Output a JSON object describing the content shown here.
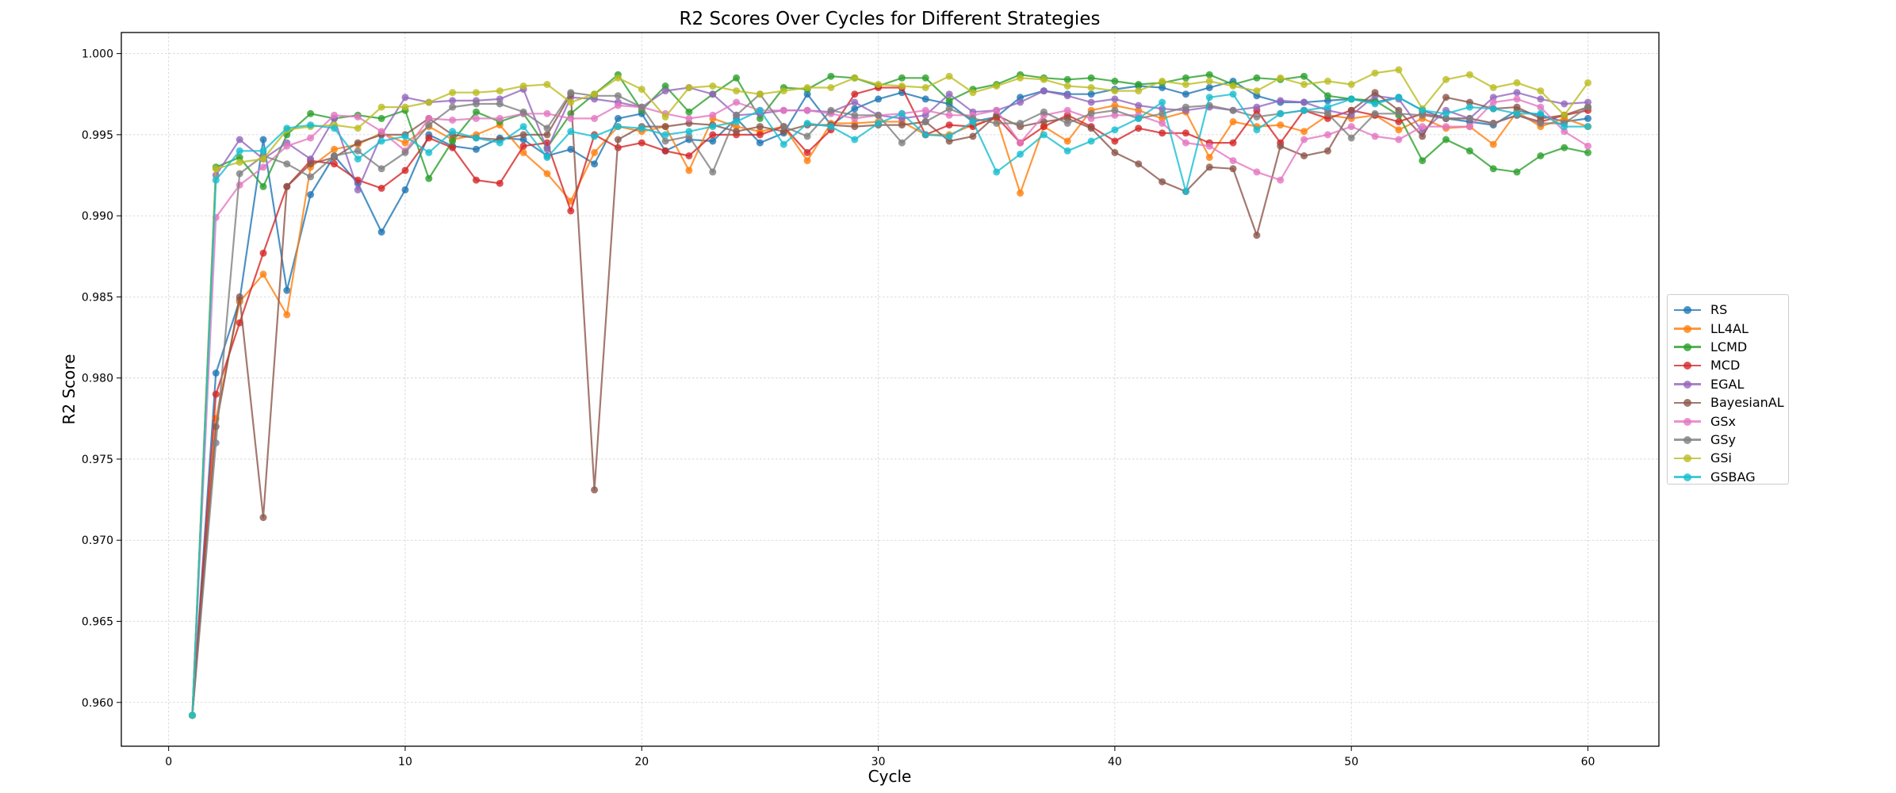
{
  "chart_data": {
    "type": "line",
    "title": "R2 Scores Over Cycles for Different Strategies",
    "xlabel": "Cycle",
    "ylabel": "R2 Score",
    "xlim": [
      -2,
      63
    ],
    "ylim": [
      0.9573,
      1.0013
    ],
    "xticks": [
      0,
      10,
      20,
      30,
      40,
      50,
      60
    ],
    "yticks": [
      0.96,
      0.965,
      0.97,
      0.975,
      0.98,
      0.985,
      0.99,
      0.995,
      1.0
    ],
    "grid": true,
    "legend_position": "right",
    "x": [
      1,
      2,
      3,
      4,
      5,
      6,
      7,
      8,
      9,
      10,
      11,
      12,
      13,
      14,
      15,
      16,
      17,
      18,
      19,
      20,
      21,
      22,
      23,
      24,
      25,
      26,
      27,
      28,
      29,
      30,
      31,
      32,
      33,
      34,
      35,
      36,
      37,
      38,
      39,
      40,
      41,
      42,
      43,
      44,
      45,
      46,
      47,
      48,
      49,
      50,
      51,
      52,
      53,
      54,
      55,
      56,
      57,
      58,
      59,
      60
    ],
    "series": [
      {
        "name": "RS",
        "color": "#1f77b4",
        "values": [
          0.9592,
          0.9803,
          0.9848,
          0.9947,
          0.9854,
          0.9913,
          0.9937,
          0.992,
          0.989,
          0.9916,
          0.995,
          0.9943,
          0.9941,
          0.9948,
          0.9947,
          0.9937,
          0.9941,
          0.9932,
          0.996,
          0.9963,
          0.994,
          0.9947,
          0.9946,
          0.996,
          0.9945,
          0.9951,
          0.9975,
          0.9956,
          0.9966,
          0.9972,
          0.9976,
          0.9972,
          0.9969,
          0.9958,
          0.9961,
          0.9973,
          0.9977,
          0.9975,
          0.9975,
          0.9978,
          0.998,
          0.9979,
          0.9975,
          0.9979,
          0.9983,
          0.9974,
          0.997,
          0.997,
          0.9971,
          0.9972,
          0.997,
          0.9973,
          0.9965,
          0.996,
          0.9958,
          0.9956,
          0.9965,
          0.9962,
          0.9958,
          0.996
        ]
      },
      {
        "name": "LL4AL",
        "color": "#ff7f0e",
        "values": [
          0.9592,
          0.9775,
          0.9847,
          0.9864,
          0.9839,
          0.993,
          0.9941,
          0.9944,
          0.9951,
          0.9945,
          0.9955,
          0.9947,
          0.995,
          0.9956,
          0.9939,
          0.9926,
          0.9909,
          0.9939,
          0.9955,
          0.9952,
          0.9955,
          0.9928,
          0.996,
          0.9955,
          0.9952,
          0.9955,
          0.9934,
          0.9957,
          0.9957,
          0.9958,
          0.9958,
          0.995,
          0.995,
          0.9956,
          0.996,
          0.9914,
          0.9955,
          0.9946,
          0.9965,
          0.9968,
          0.9965,
          0.996,
          0.9964,
          0.9936,
          0.9958,
          0.9955,
          0.9956,
          0.9952,
          0.9962,
          0.996,
          0.9962,
          0.9953,
          0.996,
          0.9954,
          0.9955,
          0.9944,
          0.9964,
          0.9955,
          0.996,
          0.9955
        ]
      },
      {
        "name": "LCMD",
        "color": "#2ca02c",
        "values": [
          0.9592,
          0.993,
          0.9936,
          0.9918,
          0.995,
          0.9963,
          0.996,
          0.9962,
          0.996,
          0.9965,
          0.9923,
          0.9946,
          0.9964,
          0.9958,
          0.9963,
          0.9942,
          0.9963,
          0.9975,
          0.9987,
          0.9965,
          0.998,
          0.9964,
          0.9975,
          0.9985,
          0.996,
          0.9979,
          0.9978,
          0.9986,
          0.9985,
          0.998,
          0.9985,
          0.9985,
          0.9971,
          0.9978,
          0.9981,
          0.9987,
          0.9985,
          0.9984,
          0.9985,
          0.9983,
          0.9981,
          0.9982,
          0.9985,
          0.9987,
          0.9981,
          0.9985,
          0.9984,
          0.9986,
          0.9974,
          0.9972,
          0.9971,
          0.9962,
          0.9934,
          0.9947,
          0.994,
          0.9929,
          0.9927,
          0.9937,
          0.9942,
          0.9939
        ]
      },
      {
        "name": "MCD",
        "color": "#d62728",
        "values": [
          0.9592,
          0.979,
          0.9834,
          0.9877,
          0.9918,
          0.9934,
          0.9932,
          0.9922,
          0.9917,
          0.9928,
          0.9948,
          0.9942,
          0.9922,
          0.992,
          0.9943,
          0.9945,
          0.9903,
          0.995,
          0.9942,
          0.9945,
          0.994,
          0.9937,
          0.995,
          0.995,
          0.995,
          0.9955,
          0.9939,
          0.9953,
          0.9975,
          0.9979,
          0.9979,
          0.995,
          0.9956,
          0.9955,
          0.9961,
          0.9945,
          0.9955,
          0.9962,
          0.9955,
          0.9946,
          0.9954,
          0.9951,
          0.9951,
          0.9945,
          0.9945,
          0.9965,
          0.9945,
          0.9965,
          0.996,
          0.9965,
          0.9962,
          0.9958,
          0.9963,
          0.996,
          0.996,
          0.9957,
          0.9962,
          0.9958,
          0.9962,
          0.9965
        ]
      },
      {
        "name": "EGAL",
        "color": "#9467bd",
        "values": [
          0.9592,
          0.9925,
          0.9947,
          0.9935,
          0.9945,
          0.9935,
          0.996,
          0.9916,
          0.995,
          0.9973,
          0.997,
          0.9971,
          0.9971,
          0.9972,
          0.9978,
          0.9941,
          0.9973,
          0.9972,
          0.997,
          0.9967,
          0.9977,
          0.9979,
          0.9975,
          0.9962,
          0.9963,
          0.9965,
          0.9965,
          0.9964,
          0.997,
          0.9962,
          0.996,
          0.9962,
          0.9975,
          0.9964,
          0.9965,
          0.997,
          0.9977,
          0.9974,
          0.997,
          0.9972,
          0.9968,
          0.9966,
          0.9965,
          0.9967,
          0.9965,
          0.9967,
          0.9971,
          0.997,
          0.9965,
          0.9962,
          0.9974,
          0.9972,
          0.9952,
          0.9965,
          0.996,
          0.9973,
          0.9976,
          0.9972,
          0.9969,
          0.997
        ]
      },
      {
        "name": "BayesianAL",
        "color": "#8c564b",
        "values": [
          0.9592,
          0.977,
          0.985,
          0.9714,
          0.9918,
          0.9932,
          0.9936,
          0.9945,
          0.995,
          0.995,
          0.996,
          0.995,
          0.9948,
          0.9947,
          0.995,
          0.995,
          0.9975,
          0.9731,
          0.9947,
          0.9955,
          0.9955,
          0.9957,
          0.9956,
          0.9952,
          0.9955,
          0.9952,
          0.9956,
          0.9956,
          0.9955,
          0.9956,
          0.9956,
          0.9958,
          0.9946,
          0.9949,
          0.9962,
          0.9955,
          0.9958,
          0.996,
          0.9954,
          0.9939,
          0.9932,
          0.9921,
          0.9915,
          0.993,
          0.9929,
          0.9888,
          0.9943,
          0.9937,
          0.994,
          0.9965,
          0.9976,
          0.9965,
          0.9949,
          0.9973,
          0.997,
          0.9966,
          0.9967,
          0.996,
          0.9962,
          0.9967
        ]
      },
      {
        "name": "GSx",
        "color": "#e377c2",
        "values": [
          0.9592,
          0.9899,
          0.9919,
          0.993,
          0.9943,
          0.9948,
          0.9962,
          0.9961,
          0.9952,
          0.994,
          0.996,
          0.9959,
          0.996,
          0.996,
          0.9963,
          0.9963,
          0.996,
          0.996,
          0.9968,
          0.9967,
          0.9963,
          0.996,
          0.9962,
          0.997,
          0.9965,
          0.9965,
          0.9965,
          0.9963,
          0.996,
          0.9962,
          0.9963,
          0.9965,
          0.9962,
          0.9962,
          0.9965,
          0.9945,
          0.9962,
          0.9965,
          0.996,
          0.9962,
          0.9962,
          0.9957,
          0.9945,
          0.9943,
          0.9934,
          0.9927,
          0.9922,
          0.9947,
          0.995,
          0.9955,
          0.9949,
          0.9947,
          0.9955,
          0.9955,
          0.9955,
          0.997,
          0.9972,
          0.9967,
          0.9952,
          0.9943
        ]
      },
      {
        "name": "GSy",
        "color": "#7f7f7f",
        "values": [
          0.9592,
          0.976,
          0.9926,
          0.9937,
          0.9932,
          0.9924,
          0.9937,
          0.994,
          0.9929,
          0.9939,
          0.9956,
          0.9967,
          0.9969,
          0.9969,
          0.9964,
          0.9954,
          0.9976,
          0.9974,
          0.9974,
          0.9967,
          0.9946,
          0.9949,
          0.9927,
          0.9962,
          0.9975,
          0.9955,
          0.9949,
          0.9965,
          0.9962,
          0.9962,
          0.9945,
          0.9958,
          0.9966,
          0.996,
          0.9957,
          0.9957,
          0.9964,
          0.9957,
          0.9963,
          0.9965,
          0.996,
          0.9963,
          0.9967,
          0.9968,
          0.9965,
          0.9961,
          0.9963,
          0.9965,
          0.9963,
          0.9948,
          0.9963,
          0.9963,
          0.9962,
          0.996,
          0.996,
          0.9957,
          0.9962,
          0.9957,
          0.9957,
          0.9967
        ]
      },
      {
        "name": "GSi",
        "color": "#bcbd22",
        "values": [
          0.9592,
          0.9929,
          0.9933,
          0.9935,
          0.9953,
          0.9955,
          0.9956,
          0.9954,
          0.9967,
          0.9967,
          0.997,
          0.9976,
          0.9976,
          0.9977,
          0.998,
          0.9981,
          0.997,
          0.9975,
          0.9985,
          0.9978,
          0.9961,
          0.9979,
          0.998,
          0.9977,
          0.9975,
          0.9977,
          0.9979,
          0.9979,
          0.9985,
          0.9981,
          0.998,
          0.9979,
          0.9986,
          0.9976,
          0.998,
          0.9985,
          0.9984,
          0.998,
          0.9979,
          0.9977,
          0.9977,
          0.9983,
          0.9981,
          0.9983,
          0.998,
          0.9977,
          0.9985,
          0.9981,
          0.9983,
          0.9981,
          0.9988,
          0.999,
          0.9966,
          0.9984,
          0.9987,
          0.9979,
          0.9982,
          0.9977,
          0.9962,
          0.9982
        ]
      },
      {
        "name": "GSBAG",
        "color": "#17becf",
        "values": [
          0.9592,
          0.9922,
          0.994,
          0.994,
          0.9954,
          0.9956,
          0.9954,
          0.9935,
          0.9946,
          0.9949,
          0.9939,
          0.9952,
          0.9948,
          0.9945,
          0.9955,
          0.9936,
          0.9952,
          0.9949,
          0.9955,
          0.9954,
          0.995,
          0.9952,
          0.9955,
          0.9958,
          0.9965,
          0.9944,
          0.9957,
          0.9955,
          0.9947,
          0.9957,
          0.9963,
          0.995,
          0.9949,
          0.9958,
          0.9927,
          0.9938,
          0.995,
          0.994,
          0.9946,
          0.9953,
          0.996,
          0.997,
          0.9915,
          0.9973,
          0.9975,
          0.9953,
          0.9963,
          0.9965,
          0.9967,
          0.9972,
          0.9969,
          0.9973,
          0.9965,
          0.9963,
          0.9967,
          0.9966,
          0.9963,
          0.9963,
          0.9955,
          0.9955
        ]
      }
    ]
  }
}
